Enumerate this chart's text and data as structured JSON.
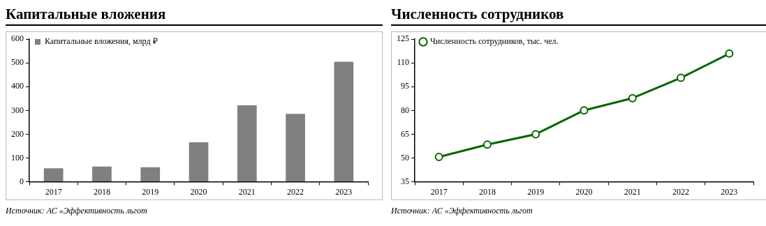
{
  "chart_data": [
    {
      "type": "bar",
      "title": "Капитальные вложения",
      "categories": [
        "2017",
        "2018",
        "2019",
        "2020",
        "2021",
        "2022",
        "2023"
      ],
      "series": [
        {
          "name": "Капитальные вложения, млрд ₽",
          "color": "#808080",
          "values": [
            57,
            64,
            61,
            166,
            322,
            286,
            505
          ]
        }
      ],
      "ylim": [
        0,
        600
      ],
      "yticks": [
        0,
        100,
        200,
        300,
        400,
        500,
        600
      ],
      "legend": "top left",
      "annotations": [
        "Источник: АС «Эффективность льгот"
      ]
    },
    {
      "type": "line",
      "title": "Численность сотрудников",
      "categories": [
        "2017",
        "2018",
        "2019",
        "2020",
        "2021",
        "2022",
        "2023"
      ],
      "series": [
        {
          "name": "Численность сотрудников, тыс. чел.",
          "color": "#006600",
          "values": [
            50.7,
            58.5,
            65,
            80.1,
            87.8,
            100.6,
            115.9
          ]
        }
      ],
      "ylim": [
        35,
        125
      ],
      "yticks": [
        35,
        50,
        65,
        80,
        95,
        110,
        125
      ],
      "legend": "top left",
      "marker": "circle",
      "annotations": [
        "Источник: АС «Эффективность льгот"
      ]
    }
  ]
}
